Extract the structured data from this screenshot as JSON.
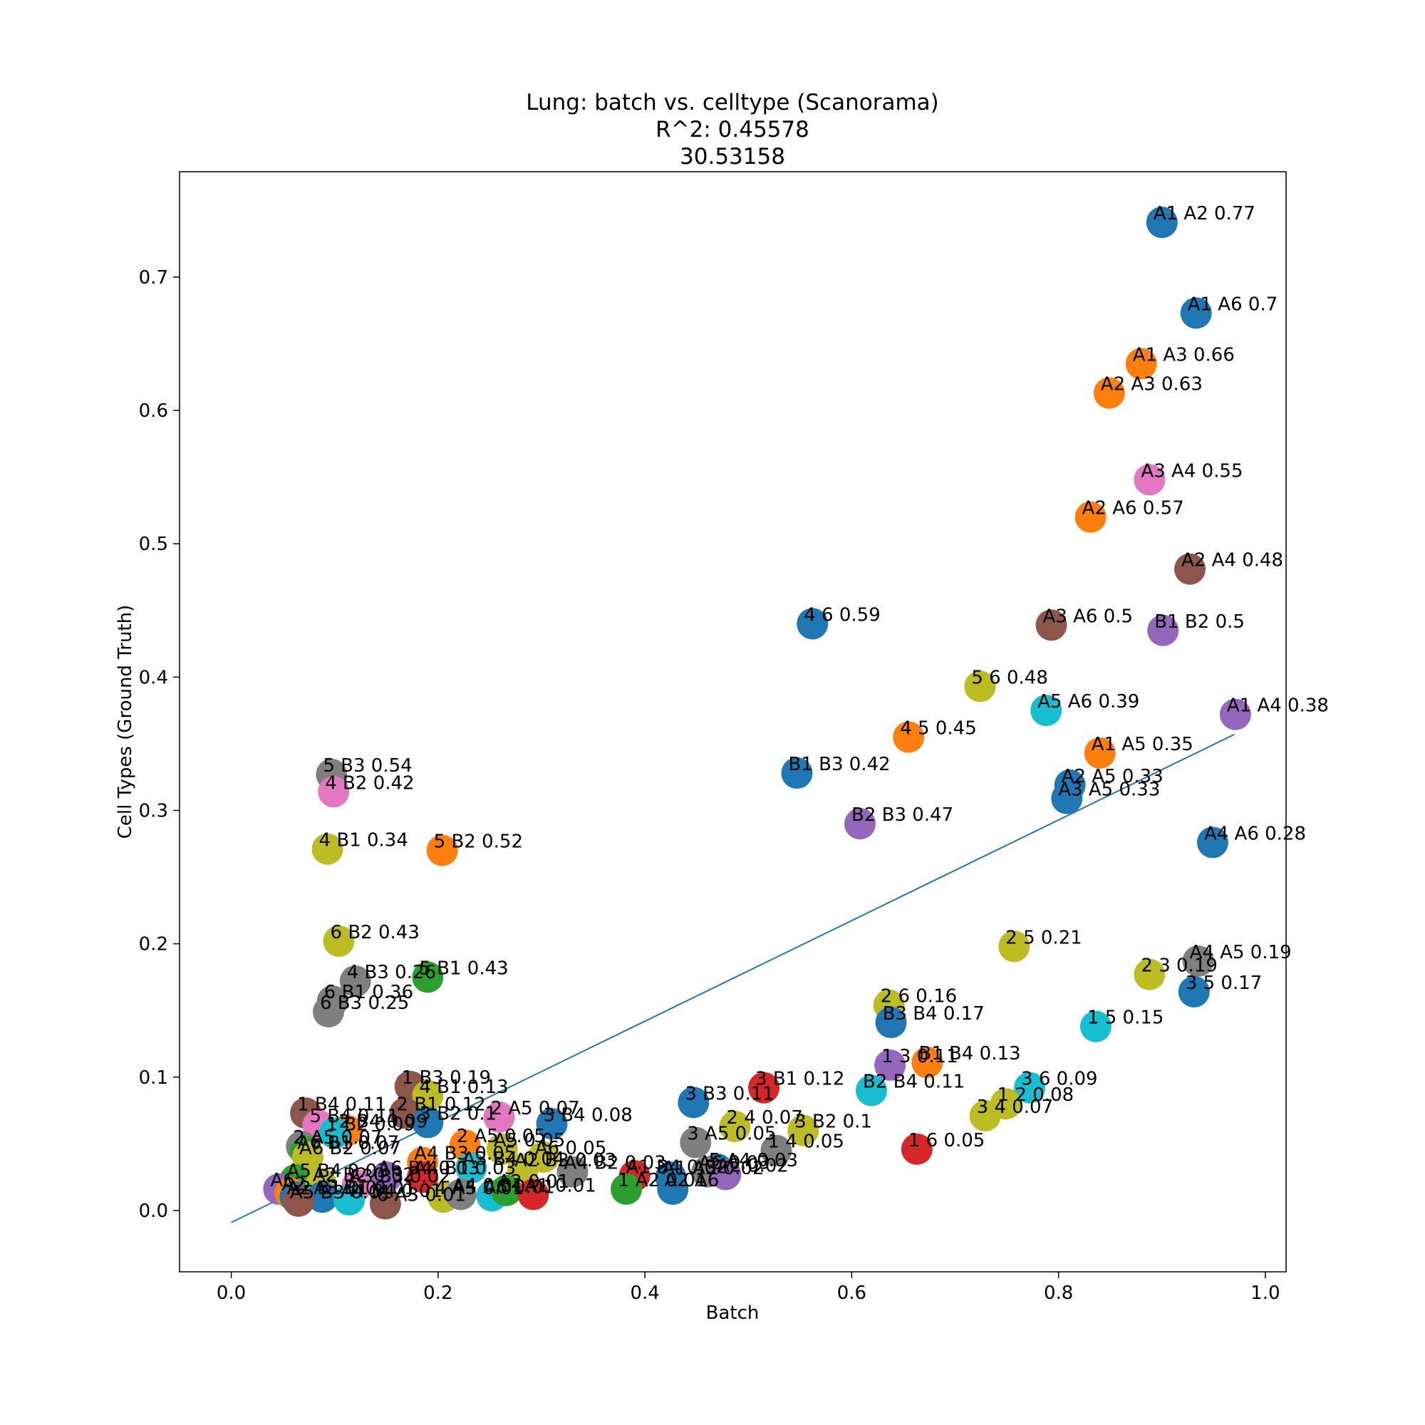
{
  "chart_data": {
    "type": "scatter",
    "title_lines": [
      "Lung: batch vs. celltype (Scanorama)",
      "R^2: 0.45578",
      "30.53158"
    ],
    "xlabel": "Batch",
    "ylabel": "Cell Types (Ground Truth)",
    "xlim": [
      -0.05,
      1.02
    ],
    "ylim": [
      -0.046,
      0.779
    ],
    "xticks": [
      "0.0",
      "0.2",
      "0.4",
      "0.6",
      "0.8",
      "1.0"
    ],
    "yticks": [
      "0.0",
      "0.1",
      "0.2",
      "0.3",
      "0.4",
      "0.5",
      "0.6",
      "0.7"
    ],
    "grid": false,
    "legend": "none",
    "fit_line": {
      "x": [
        0.0,
        0.97
      ],
      "y": [
        -0.009,
        0.357
      ]
    },
    "points": [
      {
        "x": 0.9,
        "y": 0.741,
        "label": "A1 A2 0.77",
        "color": "#1f77b4"
      },
      {
        "x": 0.933,
        "y": 0.673,
        "label": "A1 A6 0.7",
        "color": "#1f77b4"
      },
      {
        "x": 0.88,
        "y": 0.635,
        "label": "A1 A3 0.66",
        "color": "#ff7f0e"
      },
      {
        "x": 0.849,
        "y": 0.613,
        "label": "A2 A3 0.63",
        "color": "#ff7f0e"
      },
      {
        "x": 0.888,
        "y": 0.548,
        "label": "A3 A4 0.55",
        "color": "#e377c2"
      },
      {
        "x": 0.831,
        "y": 0.52,
        "label": "A2 A6 0.57",
        "color": "#ff7f0e"
      },
      {
        "x": 0.927,
        "y": 0.481,
        "label": "A2 A4 0.48",
        "color": "#8c564b"
      },
      {
        "x": 0.793,
        "y": 0.439,
        "label": "A3 A6 0.5",
        "color": "#8c564b"
      },
      {
        "x": 0.901,
        "y": 0.435,
        "label": "B1 B2 0.5",
        "color": "#9467bd"
      },
      {
        "x": 0.562,
        "y": 0.44,
        "label": "4 6 0.59",
        "color": "#1f77b4"
      },
      {
        "x": 0.724,
        "y": 0.393,
        "label": "5 6 0.48",
        "color": "#bcbd22"
      },
      {
        "x": 0.788,
        "y": 0.375,
        "label": "A5 A6 0.39",
        "color": "#17becf"
      },
      {
        "x": 0.971,
        "y": 0.372,
        "label": "A1 A4 0.38",
        "color": "#9467bd"
      },
      {
        "x": 0.655,
        "y": 0.355,
        "label": "4 5 0.45",
        "color": "#ff7f0e"
      },
      {
        "x": 0.84,
        "y": 0.343,
        "label": "A1 A5 0.35",
        "color": "#ff7f0e"
      },
      {
        "x": 0.547,
        "y": 0.328,
        "label": "B1 B3 0.42",
        "color": "#1f77b4"
      },
      {
        "x": 0.811,
        "y": 0.319,
        "label": "A2 A5 0.33",
        "color": "#1f77b4"
      },
      {
        "x": 0.808,
        "y": 0.309,
        "label": "A3 A5 0.33",
        "color": "#1f77b4"
      },
      {
        "x": 0.608,
        "y": 0.29,
        "label": "B2 B3 0.47",
        "color": "#9467bd"
      },
      {
        "x": 0.949,
        "y": 0.276,
        "label": "A4 A6 0.28",
        "color": "#1f77b4"
      },
      {
        "x": 0.097,
        "y": 0.327,
        "label": "5 B3 0.54",
        "color": "#7f7f7f"
      },
      {
        "x": 0.099,
        "y": 0.314,
        "label": "4 B2 0.42",
        "color": "#e377c2"
      },
      {
        "x": 0.093,
        "y": 0.271,
        "label": "4 B1 0.34",
        "color": "#bcbd22"
      },
      {
        "x": 0.204,
        "y": 0.27,
        "label": "5 B2 0.52",
        "color": "#ff7f0e"
      },
      {
        "x": 0.104,
        "y": 0.202,
        "label": "6 B2 0.43",
        "color": "#bcbd22"
      },
      {
        "x": 0.19,
        "y": 0.175,
        "label": "5 B1 0.43",
        "color": "#2ca02c"
      },
      {
        "x": 0.12,
        "y": 0.172,
        "label": "4 B3 0.26",
        "color": "#7f7f7f"
      },
      {
        "x": 0.098,
        "y": 0.157,
        "label": "6 B1 0.36",
        "color": "#7f7f7f"
      },
      {
        "x": 0.094,
        "y": 0.149,
        "label": "6 B3 0.25",
        "color": "#7f7f7f"
      },
      {
        "x": 0.757,
        "y": 0.198,
        "label": "2 5 0.21",
        "color": "#bcbd22"
      },
      {
        "x": 0.935,
        "y": 0.187,
        "label": "A4 A5 0.19",
        "color": "#7f7f7f"
      },
      {
        "x": 0.888,
        "y": 0.177,
        "label": "2 3 0.19",
        "color": "#bcbd22"
      },
      {
        "x": 0.931,
        "y": 0.164,
        "label": "3 5 0.17",
        "color": "#1f77b4"
      },
      {
        "x": 0.636,
        "y": 0.154,
        "label": "2 6 0.16",
        "color": "#bcbd22"
      },
      {
        "x": 0.638,
        "y": 0.141,
        "label": "B3 B4 0.17",
        "color": "#1f77b4"
      },
      {
        "x": 0.836,
        "y": 0.138,
        "label": "1 5 0.15",
        "color": "#17becf"
      },
      {
        "x": 0.637,
        "y": 0.109,
        "label": "1 3 0.11",
        "color": "#9467bd"
      },
      {
        "x": 0.673,
        "y": 0.111,
        "label": "B1 B4 0.13",
        "color": "#ff7f0e"
      },
      {
        "x": 0.772,
        "y": 0.092,
        "label": "3 6 0.09",
        "color": "#17becf"
      },
      {
        "x": 0.749,
        "y": 0.08,
        "label": "1 2 0.08",
        "color": "#bcbd22"
      },
      {
        "x": 0.729,
        "y": 0.071,
        "label": "3 4 0.07",
        "color": "#bcbd22"
      },
      {
        "x": 0.515,
        "y": 0.092,
        "label": "3 B1 0.12",
        "color": "#d62728"
      },
      {
        "x": 0.619,
        "y": 0.09,
        "label": "B2 B4 0.11",
        "color": "#17becf"
      },
      {
        "x": 0.447,
        "y": 0.081,
        "label": "3 B3 0.11",
        "color": "#1f77b4"
      },
      {
        "x": 0.487,
        "y": 0.063,
        "label": "2 4 0.07",
        "color": "#bcbd22"
      },
      {
        "x": 0.553,
        "y": 0.06,
        "label": "3 B2 0.1",
        "color": "#bcbd22"
      },
      {
        "x": 0.449,
        "y": 0.051,
        "label": "3 A5 0.05",
        "color": "#7f7f7f"
      },
      {
        "x": 0.527,
        "y": 0.045,
        "label": "1 4 0.05",
        "color": "#7f7f7f"
      },
      {
        "x": 0.663,
        "y": 0.046,
        "label": "1 6 0.05",
        "color": "#d62728"
      },
      {
        "x": 0.31,
        "y": 0.065,
        "label": "3 B4 0.08",
        "color": "#1f77b4"
      },
      {
        "x": 0.259,
        "y": 0.07,
        "label": "2 A5 0.07",
        "color": "#e377c2"
      },
      {
        "x": 0.173,
        "y": 0.093,
        "label": "1 B3 0.19",
        "color": "#8c564b"
      },
      {
        "x": 0.19,
        "y": 0.086,
        "label": "4 B1 0.13",
        "color": "#bcbd22"
      },
      {
        "x": 0.072,
        "y": 0.073,
        "label": "1 B4 0.11",
        "color": "#8c564b"
      },
      {
        "x": 0.168,
        "y": 0.073,
        "label": "2 B1 0.12",
        "color": "#8c564b"
      },
      {
        "x": 0.19,
        "y": 0.066,
        "label": "3 B2 0.1",
        "color": "#1f77b4"
      },
      {
        "x": 0.084,
        "y": 0.064,
        "label": "5 B4 0.11",
        "color": "#e377c2"
      },
      {
        "x": 0.112,
        "y": 0.06,
        "label": "2 B4 0.09",
        "color": "#ff7f0e"
      },
      {
        "x": 0.1,
        "y": 0.058,
        "label": "1 B2 0.09",
        "color": "#17becf"
      },
      {
        "x": 0.226,
        "y": 0.049,
        "label": "2 A5 0.05",
        "color": "#ff7f0e"
      },
      {
        "x": 0.262,
        "y": 0.046,
        "label": "A5 0.05",
        "color": "#bcbd22"
      },
      {
        "x": 0.068,
        "y": 0.048,
        "label": "2 A5 0.07",
        "color": "#7f7f7f"
      },
      {
        "x": 0.072,
        "y": 0.044,
        "label": "A6 B1 0.07",
        "color": "#2ca02c"
      },
      {
        "x": 0.074,
        "y": 0.04,
        "label": "A6 B2 0.07",
        "color": "#bcbd22"
      },
      {
        "x": 0.302,
        "y": 0.04,
        "label": "A6 0.05",
        "color": "#bcbd22"
      },
      {
        "x": 0.185,
        "y": 0.036,
        "label": "A4 B3 0.05",
        "color": "#ff7f0e"
      },
      {
        "x": 0.232,
        "y": 0.032,
        "label": "A3 B4 0.04",
        "color": "#17becf"
      },
      {
        "x": 0.282,
        "y": 0.031,
        "label": "A2 B3 0.03",
        "color": "#bcbd22"
      },
      {
        "x": 0.33,
        "y": 0.029,
        "label": "A4 B2 0.03",
        "color": "#7f7f7f"
      },
      {
        "x": 0.39,
        "y": 0.026,
        "label": "A1 B4 0.02",
        "color": "#d62728"
      },
      {
        "x": 0.425,
        "y": 0.025,
        "label": "A1 A3 0.02",
        "color": "#1f77b4"
      },
      {
        "x": 0.47,
        "y": 0.031,
        "label": "5 A4 0.03",
        "color": "#1f77b4"
      },
      {
        "x": 0.46,
        "y": 0.029,
        "label": "A6 0.03",
        "color": "#7f7f7f"
      },
      {
        "x": 0.478,
        "y": 0.027,
        "label": "A2 0.02",
        "color": "#9467bd"
      },
      {
        "x": 0.15,
        "y": 0.025,
        "label": "A6 B4 0.03",
        "color": "#9467bd"
      },
      {
        "x": 0.062,
        "y": 0.023,
        "label": "A5 B4 0.03",
        "color": "#2ca02c"
      },
      {
        "x": 0.087,
        "y": 0.02,
        "label": "A2 B2 0.02",
        "color": "#bcbd22"
      },
      {
        "x": 0.122,
        "y": 0.019,
        "label": "A3 B3 0.02",
        "color": "#e377c2"
      },
      {
        "x": 0.185,
        "y": 0.025,
        "label": "A4 B1 0.03",
        "color": "#d62728"
      },
      {
        "x": 0.046,
        "y": 0.016,
        "label": "A6",
        "color": "#9467bd"
      },
      {
        "x": 0.057,
        "y": 0.013,
        "label": "A2",
        "color": "#ff7f0e"
      },
      {
        "x": 0.062,
        "y": 0.01,
        "label": "A2 B1 0.01",
        "color": "#1f77b4"
      },
      {
        "x": 0.088,
        "y": 0.01,
        "label": "A3 B1 0.01",
        "color": "#1f77b4"
      },
      {
        "x": 0.114,
        "y": 0.008,
        "label": "A4 B4 0.01",
        "color": "#17becf"
      },
      {
        "x": 0.065,
        "y": 0.007,
        "label": "A5 B3 0.01",
        "color": "#8c564b"
      },
      {
        "x": 0.149,
        "y": 0.005,
        "label": "6 A3 0.01",
        "color": "#8c564b"
      },
      {
        "x": 0.205,
        "y": 0.01,
        "label": "4 A5 0.01",
        "color": "#bcbd22"
      },
      {
        "x": 0.222,
        "y": 0.012,
        "label": "A4 0.01",
        "color": "#7f7f7f"
      },
      {
        "x": 0.252,
        "y": 0.011,
        "label": "A6 0.01",
        "color": "#17becf"
      },
      {
        "x": 0.266,
        "y": 0.015,
        "label": "A2 0.01",
        "color": "#2ca02c"
      },
      {
        "x": 0.292,
        "y": 0.012,
        "label": "A1 0.01",
        "color": "#d62728"
      },
      {
        "x": 0.382,
        "y": 0.016,
        "label": "1 A2 0.01",
        "color": "#2ca02c"
      },
      {
        "x": 0.427,
        "y": 0.016,
        "label": "A2 A6",
        "color": "#1f77b4"
      }
    ]
  }
}
